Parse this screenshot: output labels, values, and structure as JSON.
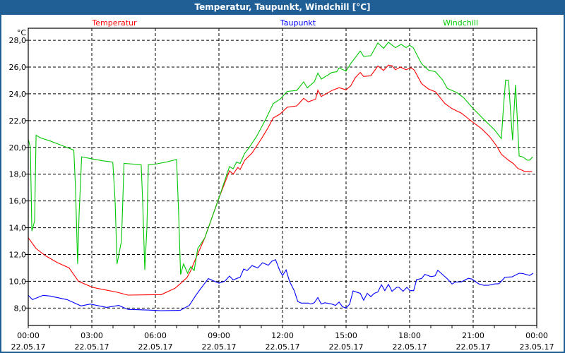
{
  "window": {
    "title": "Temperatur, Taupunkt, Windchill [°C]"
  },
  "chart_data": {
    "type": "line",
    "title": "Temperatur, Taupunkt, Windchill [°C]",
    "ylabel": "°C",
    "xlabel": "",
    "xlim": [
      0,
      24
    ],
    "ylim": [
      6.7,
      28.9
    ],
    "grid": true,
    "legend_placement": "top",
    "y_ticks": [
      {
        "value": 8,
        "label": "8,0"
      },
      {
        "value": 10,
        "label": "10,0"
      },
      {
        "value": 12,
        "label": "12,0"
      },
      {
        "value": 14,
        "label": "14,0"
      },
      {
        "value": 16,
        "label": "16,0"
      },
      {
        "value": 18,
        "label": "18,0"
      },
      {
        "value": 20,
        "label": "20,0"
      },
      {
        "value": 22,
        "label": "22,0"
      },
      {
        "value": 24,
        "label": "24,0"
      },
      {
        "value": 26,
        "label": "26,0"
      },
      {
        "value": 28,
        "label": "28,0"
      }
    ],
    "x_ticks": [
      {
        "value": 0,
        "time": "00:00",
        "date": "22.05.17"
      },
      {
        "value": 3,
        "time": "03:00",
        "date": "22.05.17"
      },
      {
        "value": 6,
        "time": "06:00",
        "date": "22.05.17"
      },
      {
        "value": 9,
        "time": "09:00",
        "date": "22.05.17"
      },
      {
        "value": 12,
        "time": "12:00",
        "date": "22.05.17"
      },
      {
        "value": 15,
        "time": "15:00",
        "date": "22.05.17"
      },
      {
        "value": 18,
        "time": "18:00",
        "date": "22.05.17"
      },
      {
        "value": 21,
        "time": "21:00",
        "date": "22.05.17"
      },
      {
        "value": 24,
        "time": "00:00",
        "date": "23.05.17"
      }
    ],
    "series": [
      {
        "name": "Temperatur",
        "color": "#ff0000",
        "points": [
          [
            0,
            13.25
          ],
          [
            0.37,
            12.45
          ],
          [
            0.82,
            11.9
          ],
          [
            1.37,
            11.4
          ],
          [
            1.93,
            11.0
          ],
          [
            2.37,
            10.0
          ],
          [
            3.03,
            9.55
          ],
          [
            3.6,
            9.37
          ],
          [
            4.16,
            9.2
          ],
          [
            4.7,
            8.97
          ],
          [
            5.93,
            9.0
          ],
          [
            6.27,
            9.0
          ],
          [
            6.93,
            9.48
          ],
          [
            7.49,
            10.27
          ],
          [
            7.67,
            10.8
          ],
          [
            7.93,
            11.8
          ],
          [
            8.33,
            13.24
          ],
          [
            9.0,
            16.23
          ],
          [
            9.5,
            18.25
          ],
          [
            9.67,
            18.0
          ],
          [
            9.89,
            18.5
          ],
          [
            10.0,
            18.35
          ],
          [
            10.22,
            19.05
          ],
          [
            10.56,
            19.57
          ],
          [
            11.0,
            20.63
          ],
          [
            11.33,
            21.5
          ],
          [
            11.56,
            22.2
          ],
          [
            11.89,
            22.5
          ],
          [
            12.22,
            23.0
          ],
          [
            12.67,
            23.1
          ],
          [
            13.0,
            23.67
          ],
          [
            13.22,
            23.4
          ],
          [
            13.56,
            23.6
          ],
          [
            13.67,
            24.27
          ],
          [
            13.83,
            23.8
          ],
          [
            14.33,
            24.25
          ],
          [
            14.67,
            24.46
          ],
          [
            15.0,
            24.3
          ],
          [
            15.22,
            24.6
          ],
          [
            15.43,
            25.2
          ],
          [
            15.67,
            25.6
          ],
          [
            15.83,
            25.3
          ],
          [
            16.17,
            25.35
          ],
          [
            16.5,
            26.08
          ],
          [
            16.77,
            25.75
          ],
          [
            17.0,
            26.15
          ],
          [
            17.17,
            26.1
          ],
          [
            17.33,
            25.8
          ],
          [
            17.56,
            26.0
          ],
          [
            17.83,
            25.8
          ],
          [
            18.06,
            25.95
          ],
          [
            18.22,
            25.78
          ],
          [
            18.56,
            24.77
          ],
          [
            18.89,
            24.36
          ],
          [
            19.22,
            24.15
          ],
          [
            19.67,
            23.27
          ],
          [
            20.0,
            22.9
          ],
          [
            20.44,
            22.56
          ],
          [
            21.0,
            21.86
          ],
          [
            21.39,
            21.4
          ],
          [
            21.78,
            20.8
          ],
          [
            22.11,
            20.1
          ],
          [
            22.33,
            19.49
          ],
          [
            22.67,
            19.04
          ],
          [
            22.89,
            18.8
          ],
          [
            23.11,
            18.43
          ],
          [
            23.44,
            18.2
          ],
          [
            23.78,
            18.2
          ]
        ]
      },
      {
        "name": "Taupunkt",
        "color": "#0000ff",
        "points": [
          [
            0,
            8.95
          ],
          [
            0.2,
            8.63
          ],
          [
            0.7,
            8.95
          ],
          [
            1.03,
            8.9
          ],
          [
            1.83,
            8.63
          ],
          [
            2.49,
            8.16
          ],
          [
            2.93,
            8.3
          ],
          [
            3.7,
            8.05
          ],
          [
            4.27,
            8.2
          ],
          [
            4.7,
            7.9
          ],
          [
            5.7,
            7.85
          ],
          [
            6.27,
            7.8
          ],
          [
            7.17,
            7.83
          ],
          [
            7.6,
            8.2
          ],
          [
            7.93,
            9.0
          ],
          [
            8.1,
            9.37
          ],
          [
            8.5,
            10.2
          ],
          [
            9.0,
            9.86
          ],
          [
            9.27,
            10.0
          ],
          [
            9.5,
            10.39
          ],
          [
            9.67,
            10.1
          ],
          [
            10.0,
            10.3
          ],
          [
            10.17,
            10.92
          ],
          [
            10.33,
            10.8
          ],
          [
            10.56,
            11.17
          ],
          [
            10.83,
            11.0
          ],
          [
            11.06,
            11.39
          ],
          [
            11.33,
            11.2
          ],
          [
            11.5,
            11.5
          ],
          [
            11.67,
            11.62
          ],
          [
            11.87,
            10.8
          ],
          [
            12.0,
            10.43
          ],
          [
            12.17,
            10.85
          ],
          [
            12.33,
            10.0
          ],
          [
            12.56,
            9.28
          ],
          [
            12.72,
            8.49
          ],
          [
            12.89,
            8.37
          ],
          [
            13.22,
            8.37
          ],
          [
            13.33,
            8.3
          ],
          [
            13.5,
            8.4
          ],
          [
            13.67,
            8.79
          ],
          [
            13.83,
            8.3
          ],
          [
            14.0,
            8.4
          ],
          [
            14.33,
            8.3
          ],
          [
            14.5,
            8.2
          ],
          [
            14.67,
            8.45
          ],
          [
            14.83,
            8.1
          ],
          [
            15.0,
            8.0
          ],
          [
            15.17,
            8.3
          ],
          [
            15.33,
            9.28
          ],
          [
            15.67,
            9.1
          ],
          [
            15.83,
            8.58
          ],
          [
            16.0,
            9.1
          ],
          [
            16.17,
            8.85
          ],
          [
            16.33,
            9.1
          ],
          [
            16.5,
            9.2
          ],
          [
            16.67,
            9.74
          ],
          [
            16.83,
            9.3
          ],
          [
            17.0,
            9.77
          ],
          [
            17.17,
            9.25
          ],
          [
            17.39,
            9.55
          ],
          [
            17.5,
            9.55
          ],
          [
            17.69,
            9.25
          ],
          [
            17.87,
            9.55
          ],
          [
            18.02,
            9.3
          ],
          [
            18.19,
            9.3
          ],
          [
            18.33,
            10.13
          ],
          [
            18.56,
            10.2
          ],
          [
            18.72,
            10.52
          ],
          [
            19.0,
            10.35
          ],
          [
            19.2,
            10.4
          ],
          [
            19.33,
            10.82
          ],
          [
            19.77,
            10.2
          ],
          [
            20.0,
            9.8
          ],
          [
            20.17,
            9.95
          ],
          [
            20.43,
            9.95
          ],
          [
            20.77,
            10.22
          ],
          [
            20.93,
            10.17
          ],
          [
            21.27,
            9.8
          ],
          [
            21.5,
            9.7
          ],
          [
            21.72,
            9.7
          ],
          [
            22.0,
            9.8
          ],
          [
            22.22,
            9.82
          ],
          [
            22.5,
            10.3
          ],
          [
            22.83,
            10.33
          ],
          [
            23.17,
            10.6
          ],
          [
            23.33,
            10.58
          ],
          [
            23.67,
            10.44
          ],
          [
            23.83,
            10.6
          ]
        ]
      },
      {
        "name": "Windchill",
        "color": "#00c800",
        "points": [
          [
            0,
            20.6
          ],
          [
            0.1,
            20.0
          ],
          [
            0.17,
            13.75
          ],
          [
            0.3,
            14.5
          ],
          [
            0.37,
            20.9
          ],
          [
            0.6,
            20.7
          ],
          [
            1.0,
            20.5
          ],
          [
            1.5,
            20.2
          ],
          [
            2.15,
            19.8
          ],
          [
            2.23,
            17.0
          ],
          [
            2.33,
            11.3
          ],
          [
            2.4,
            15.0
          ],
          [
            2.52,
            19.3
          ],
          [
            3.0,
            19.15
          ],
          [
            3.5,
            19.0
          ],
          [
            3.99,
            18.9
          ],
          [
            4.1,
            16.0
          ],
          [
            4.19,
            11.3
          ],
          [
            4.4,
            13.0
          ],
          [
            4.52,
            18.8
          ],
          [
            5.0,
            18.75
          ],
          [
            5.33,
            18.7
          ],
          [
            5.4,
            16.0
          ],
          [
            5.5,
            10.85
          ],
          [
            5.6,
            14.0
          ],
          [
            5.67,
            18.7
          ],
          [
            6.0,
            18.75
          ],
          [
            6.5,
            18.9
          ],
          [
            7.0,
            19.1
          ],
          [
            7.1,
            15.0
          ],
          [
            7.19,
            10.5
          ],
          [
            7.33,
            11.3
          ],
          [
            7.52,
            10.6
          ],
          [
            7.67,
            11.1
          ],
          [
            7.83,
            10.8
          ],
          [
            8.0,
            12.45
          ],
          [
            8.33,
            13.24
          ],
          [
            9.0,
            16.23
          ],
          [
            9.5,
            18.57
          ],
          [
            9.67,
            18.4
          ],
          [
            9.83,
            18.9
          ],
          [
            10.0,
            18.8
          ],
          [
            10.22,
            19.57
          ],
          [
            10.43,
            20.0
          ],
          [
            10.77,
            20.8
          ],
          [
            11.22,
            22.14
          ],
          [
            11.56,
            23.27
          ],
          [
            11.89,
            23.6
          ],
          [
            12.22,
            24.18
          ],
          [
            12.67,
            24.25
          ],
          [
            13.0,
            24.9
          ],
          [
            13.17,
            24.45
          ],
          [
            13.5,
            24.9
          ],
          [
            13.67,
            25.55
          ],
          [
            13.83,
            25.1
          ],
          [
            14.33,
            25.6
          ],
          [
            14.56,
            25.65
          ],
          [
            14.67,
            25.94
          ],
          [
            15.0,
            25.7
          ],
          [
            15.22,
            26.26
          ],
          [
            15.67,
            27.2
          ],
          [
            15.83,
            26.8
          ],
          [
            16.17,
            26.85
          ],
          [
            16.5,
            27.8
          ],
          [
            16.77,
            27.4
          ],
          [
            17.0,
            27.85
          ],
          [
            17.33,
            27.45
          ],
          [
            17.6,
            27.7
          ],
          [
            17.83,
            27.45
          ],
          [
            18.0,
            27.63
          ],
          [
            18.17,
            27.45
          ],
          [
            18.56,
            26.26
          ],
          [
            18.89,
            25.77
          ],
          [
            19.22,
            25.65
          ],
          [
            19.56,
            25.03
          ],
          [
            19.78,
            24.4
          ],
          [
            20.22,
            24.1
          ],
          [
            20.56,
            23.7
          ],
          [
            21.0,
            22.9
          ],
          [
            21.56,
            22.0
          ],
          [
            22.0,
            21.33
          ],
          [
            22.33,
            20.66
          ],
          [
            22.42,
            22.8
          ],
          [
            22.53,
            25.03
          ],
          [
            22.67,
            25.0
          ],
          [
            22.76,
            22.8
          ],
          [
            22.86,
            20.54
          ],
          [
            22.92,
            22.5
          ],
          [
            23.0,
            24.68
          ],
          [
            23.17,
            19.35
          ],
          [
            23.33,
            19.3
          ],
          [
            23.56,
            19.05
          ],
          [
            23.67,
            19.05
          ],
          [
            23.81,
            19.3
          ]
        ]
      }
    ]
  }
}
